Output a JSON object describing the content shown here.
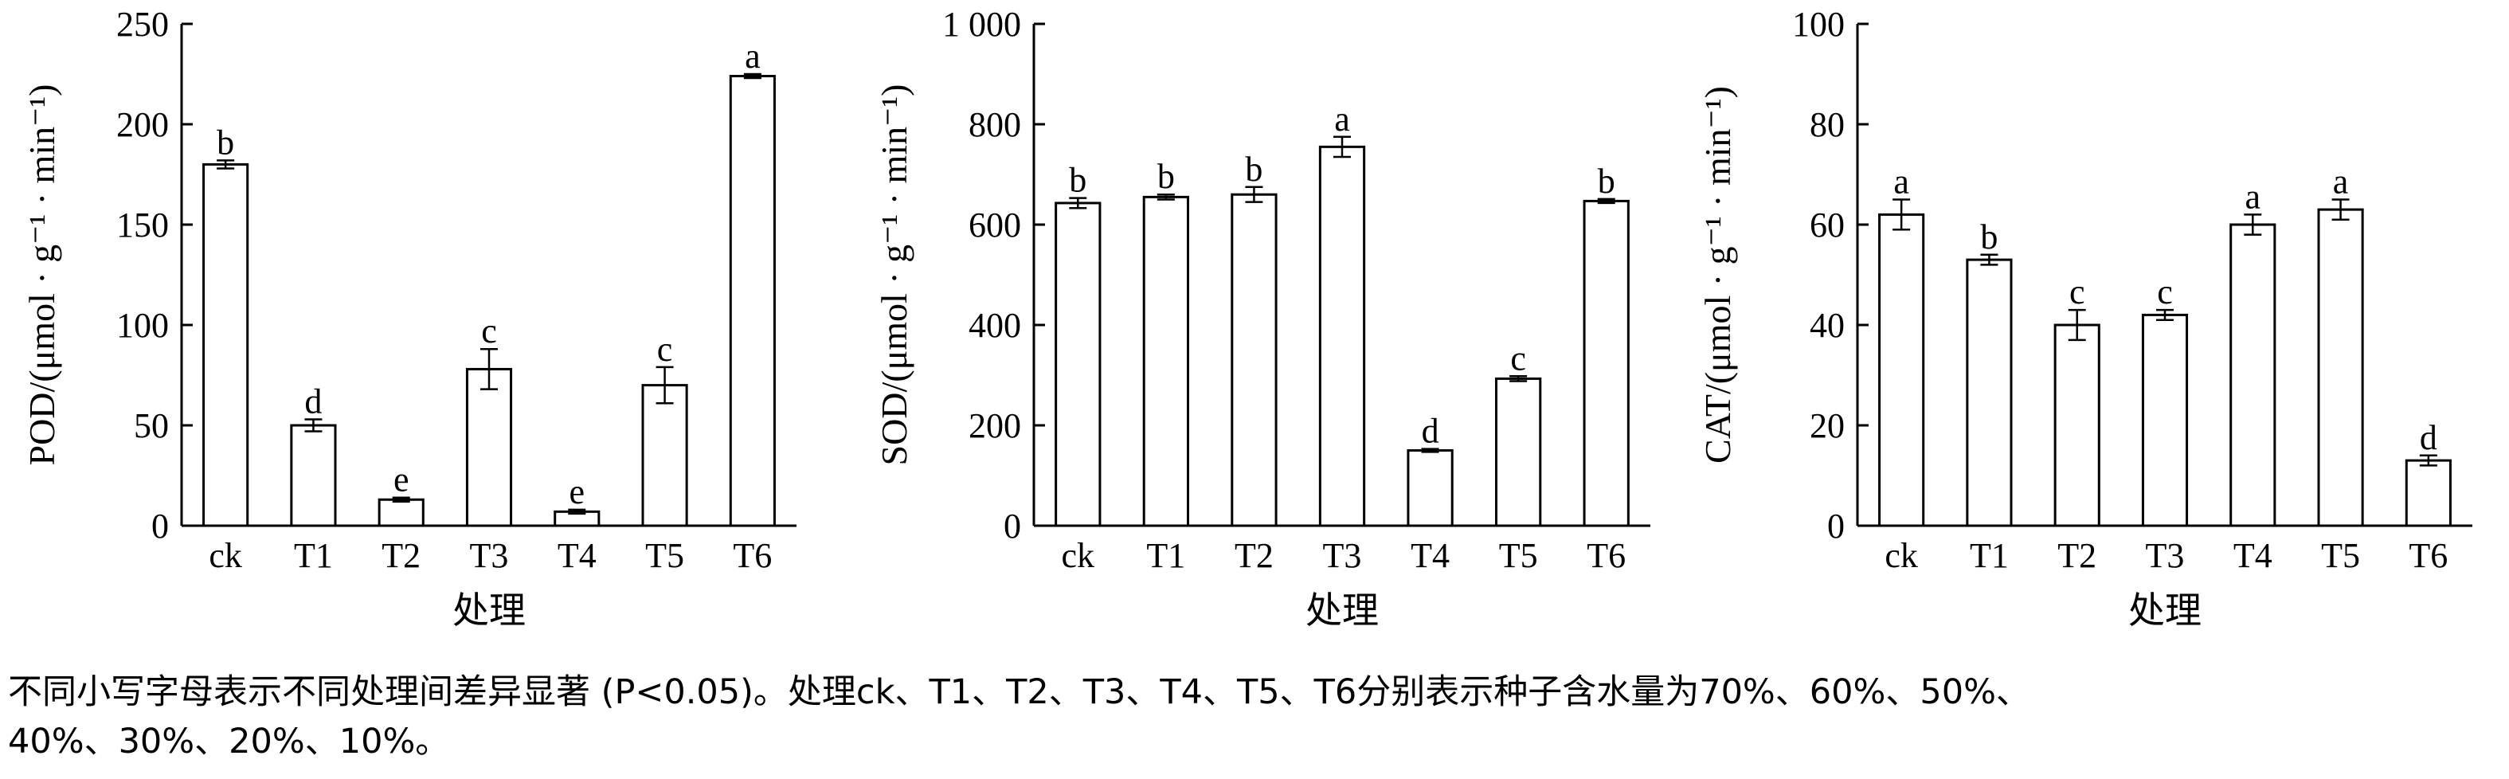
{
  "chart_data": [
    {
      "type": "bar",
      "xlabel": "处理",
      "ylabel": "POD/(μmol · g⁻¹ · min⁻¹)",
      "ylim": [
        0,
        250
      ],
      "yticks": [
        "0",
        "50",
        "100",
        "150",
        "200",
        "250"
      ],
      "categories": [
        "ck",
        "T1",
        "T2",
        "T3",
        "T4",
        "T5",
        "T6"
      ],
      "values": [
        180,
        50,
        13,
        78,
        7,
        70,
        224
      ],
      "errors": [
        2,
        3,
        1,
        10,
        1,
        9,
        1
      ],
      "letters": [
        "b",
        "d",
        "e",
        "c",
        "e",
        "c",
        "a"
      ]
    },
    {
      "type": "bar",
      "xlabel": "处理",
      "ylabel": "SOD/(μmol · g⁻¹ · min⁻¹)",
      "ylim": [
        0,
        1000
      ],
      "yticks": [
        "0",
        "200",
        "400",
        "600",
        "800",
        "1 000"
      ],
      "categories": [
        "ck",
        "T1",
        "T2",
        "T3",
        "T4",
        "T5",
        "T6"
      ],
      "values": [
        643,
        655,
        660,
        755,
        150,
        293,
        647
      ],
      "errors": [
        10,
        5,
        15,
        20,
        3,
        5,
        4
      ],
      "letters": [
        "b",
        "b",
        "b",
        "a",
        "d",
        "c",
        "b"
      ]
    },
    {
      "type": "bar",
      "xlabel": "处理",
      "ylabel": "CAT/(μmol · g⁻¹ · min⁻¹)",
      "ylim": [
        0,
        100
      ],
      "yticks": [
        "0",
        "20",
        "40",
        "60",
        "80",
        "100"
      ],
      "categories": [
        "ck",
        "T1",
        "T2",
        "T3",
        "T4",
        "T5",
        "T6"
      ],
      "values": [
        62,
        53,
        40,
        42,
        60,
        63,
        13
      ],
      "errors": [
        3,
        1,
        3,
        1,
        2,
        2,
        1
      ],
      "letters": [
        "a",
        "b",
        "c",
        "c",
        "a",
        "a",
        "d"
      ]
    }
  ],
  "caption": {
    "line1": "不同小写字母表示不同处理间差异显著 (P<0.05)。处理ck、T1、T2、T3、T4、T5、T6分别表示种子含水量为70%、60%、50%、",
    "line2": "40%、30%、20%、10%。"
  }
}
